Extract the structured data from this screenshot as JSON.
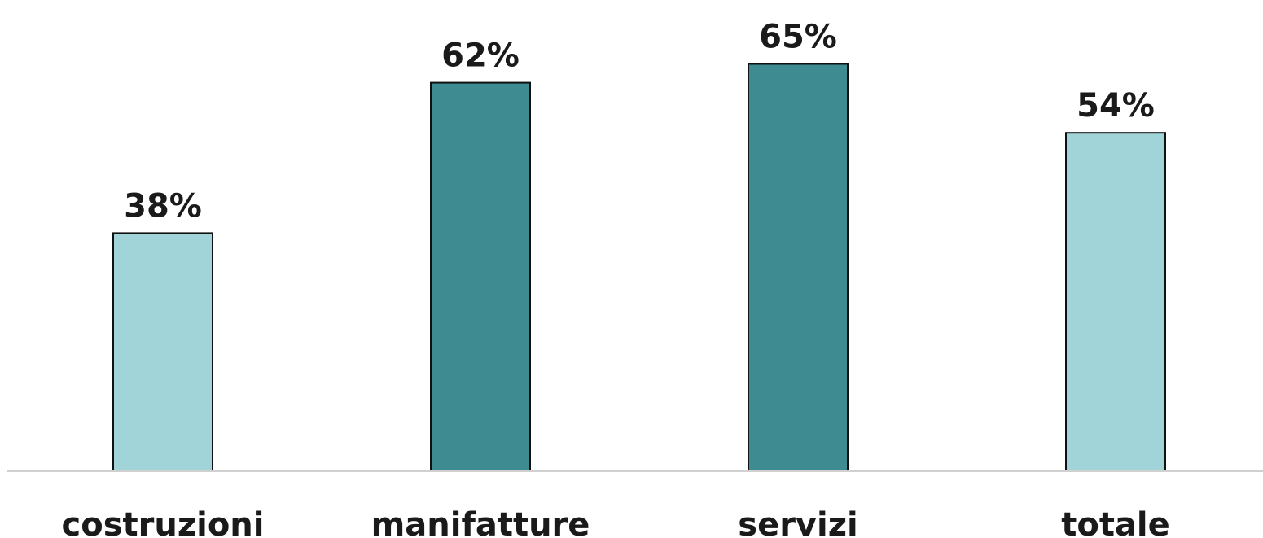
{
  "chart_data": {
    "type": "bar",
    "categories": [
      "costruzioni",
      "manifatture",
      "servizi",
      "totale"
    ],
    "values": [
      38,
      62,
      65,
      54
    ],
    "data_labels": [
      "38%",
      "62%",
      "65%",
      "54%"
    ],
    "unit": "%",
    "bar_colors": [
      "#a1d4d8",
      "#3e8b92",
      "#3e8b92",
      "#a1d4d8"
    ],
    "border_color": "#111111",
    "baseline_color": "#d0d0d0",
    "ylim": [
      0,
      100
    ],
    "grid": false,
    "legend": "none"
  }
}
